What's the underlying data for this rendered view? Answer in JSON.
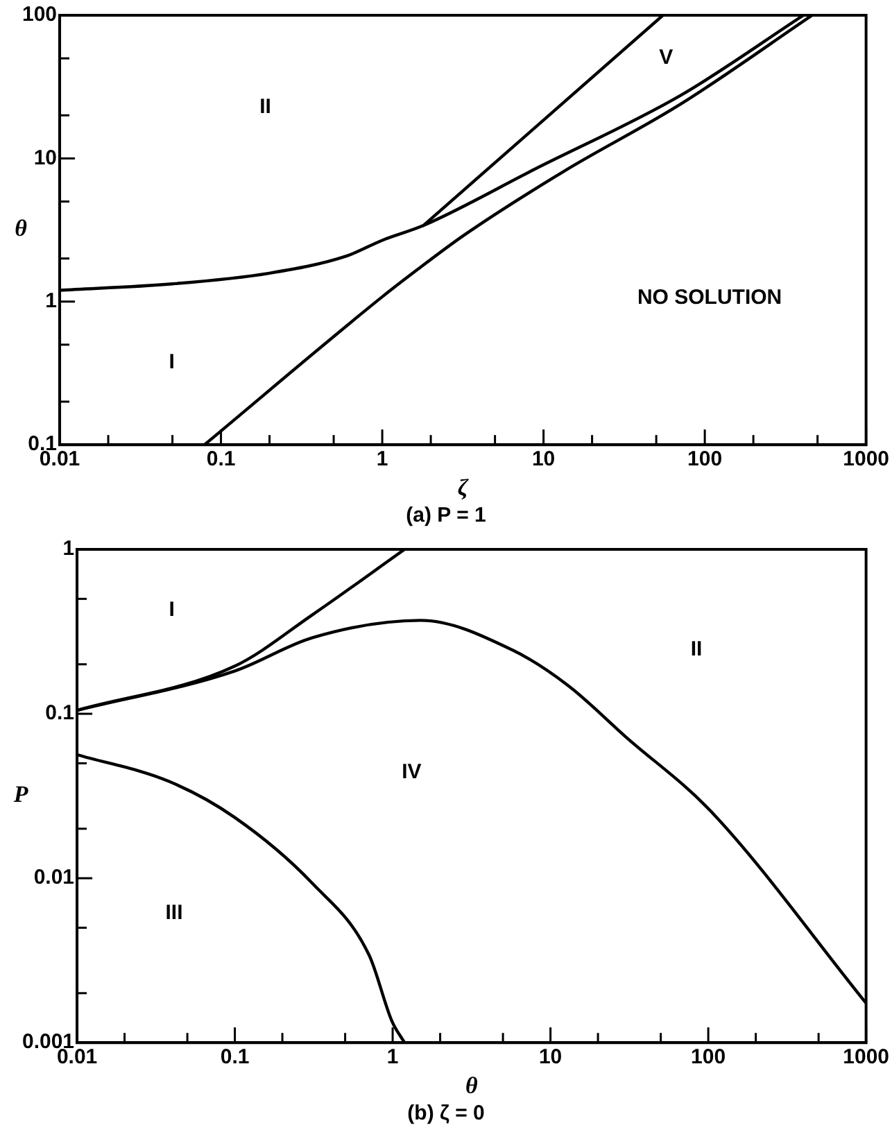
{
  "chart_data": [
    {
      "type": "line",
      "title": "(a) P = 1",
      "xlabel": "ζ",
      "ylabel": "θ",
      "log": "xy",
      "legend": false,
      "grid": false,
      "marker": "none",
      "line_style": "solid",
      "xlim": [
        0.01,
        1000
      ],
      "ylim": [
        0.1,
        100
      ],
      "xticks": [
        0.01,
        {
          "value": 0.02,
          "label": null
        },
        {
          "value": 0.05,
          "label": null
        },
        0.1,
        {
          "value": 0.2,
          "label": null
        },
        {
          "value": 0.5,
          "label": null
        },
        1,
        {
          "value": 2,
          "label": null
        },
        {
          "value": 5,
          "label": null
        },
        10,
        {
          "value": 20,
          "label": null
        },
        {
          "value": 50,
          "label": null
        },
        100,
        {
          "value": 200,
          "label": null
        },
        {
          "value": 500,
          "label": null
        },
        1000
      ],
      "yticks": [
        0.1,
        {
          "value": 0.2,
          "label": null
        },
        {
          "value": 0.5,
          "label": null
        },
        1,
        {
          "value": 2,
          "label": null
        },
        {
          "value": 5,
          "label": null
        },
        10,
        {
          "value": 20,
          "label": null
        },
        {
          "value": 50,
          "label": null
        },
        100
      ],
      "series": [
        {
          "color": "#000000",
          "x": [
            0.01,
            0.05,
            0.2,
            0.6,
            1,
            1.8,
            8.8,
            71,
            409
          ],
          "values": [
            1.2,
            1.33,
            1.58,
            2.08,
            2.68,
            3.4,
            8.4,
            27.6,
            100
          ]
        },
        {
          "color": "#000000",
          "x": [
            1.8,
            55
          ],
          "values": [
            3.4,
            100
          ]
        },
        {
          "color": "#000000",
          "x": [
            0.079,
            1,
            1.66,
            3.2,
            13.3,
            71,
            463
          ],
          "values": [
            0.1,
            1.08,
            1.68,
            2.9,
            8.1,
            24,
            100
          ]
        }
      ],
      "annotations": [
        "II",
        "V",
        "I",
        "NO SOLUTION"
      ]
    },
    {
      "type": "line",
      "title": "(b) ζ = 0",
      "xlabel": "θ",
      "ylabel": "P",
      "log": "xy",
      "legend": false,
      "grid": false,
      "marker": "none",
      "line_style": "solid",
      "xlim": [
        0.01,
        1000
      ],
      "ylim": [
        0.001,
        1
      ],
      "xticks": [
        0.01,
        {
          "value": 0.02,
          "label": null
        },
        {
          "value": 0.05,
          "label": null
        },
        0.1,
        {
          "value": 0.2,
          "label": null
        },
        {
          "value": 0.5,
          "label": null
        },
        1,
        {
          "value": 2,
          "label": null
        },
        {
          "value": 5,
          "label": null
        },
        10,
        {
          "value": 20,
          "label": null
        },
        {
          "value": 50,
          "label": null
        },
        100,
        {
          "value": 200,
          "label": null
        },
        {
          "value": 500,
          "label": null
        },
        1000
      ],
      "yticks": [
        0.001,
        {
          "value": 0.002,
          "label": null
        },
        {
          "value": 0.005,
          "label": null
        },
        0.01,
        {
          "value": 0.02,
          "label": null
        },
        {
          "value": 0.05,
          "label": null
        },
        0.1,
        {
          "value": 0.2,
          "label": null
        },
        {
          "value": 0.5,
          "label": null
        },
        1
      ],
      "series": [
        {
          "color": "#000000",
          "x": [
            0.01,
            0.1,
            0.31,
            1.19
          ],
          "values": [
            0.105,
            0.195,
            0.4,
            1
          ]
        },
        {
          "color": "#000000",
          "x": [
            0.01,
            0.1,
            0.31,
            1.5,
            5.7,
            13,
            29.9,
            104,
            1000
          ],
          "values": [
            0.105,
            0.182,
            0.29,
            0.37,
            0.245,
            0.148,
            0.0726,
            0.0255,
            0.00174
          ]
        },
        {
          "color": "#000000",
          "x": [
            0.01,
            0.0385,
            0.1,
            0.31,
            0.71,
            0.99,
            1.19
          ],
          "values": [
            0.0564,
            0.0387,
            0.0234,
            0.0093,
            0.0034,
            0.00135,
            0.001
          ]
        }
      ],
      "annotations": [
        "I",
        "II",
        "IV",
        "III"
      ]
    }
  ]
}
